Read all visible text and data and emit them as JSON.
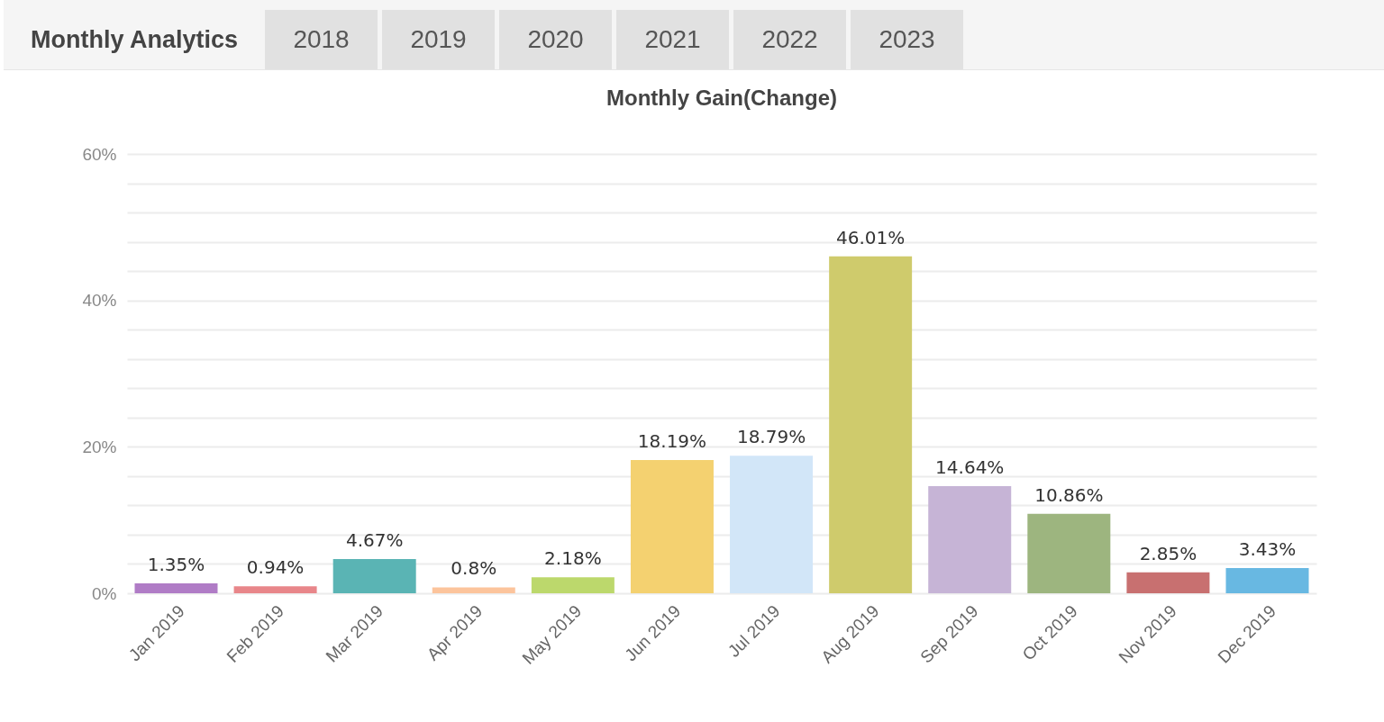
{
  "chart_data": {
    "type": "bar",
    "title": "Monthly Gain(Change)",
    "annotations": [
      "Monthly Analytics",
      "2018",
      "2019",
      "2020",
      "2021",
      "2022",
      "2023"
    ],
    "categories": [
      "Jan 2019",
      "Feb 2019",
      "Mar 2019",
      "Apr 2019",
      "May 2019",
      "Jun 2019",
      "Jul 2019",
      "Aug 2019",
      "Sep 2019",
      "Oct 2019",
      "Nov 2019",
      "Dec 2019"
    ],
    "values": [
      1.35,
      0.94,
      4.67,
      0.8,
      2.18,
      18.19,
      18.79,
      46.01,
      14.64,
      10.86,
      2.85,
      3.43
    ],
    "colors": [
      "#b07cc6",
      "#e8868a",
      "#5ab4b4",
      "#fcc49c",
      "#bcd86c",
      "#f4d170",
      "#d2e6f8",
      "#cfcb6c",
      "#c6b4d6",
      "#9db57f",
      "#c87070",
      "#68b8e2"
    ],
    "value_labels": [
      "1.35%",
      "0.94%",
      "4.67%",
      "0.8%",
      "2.18%",
      "18.19%",
      "18.79%",
      "46.01%",
      "14.64%",
      "10.86%",
      "2.85%",
      "3.43%"
    ],
    "ylim": [
      0,
      60
    ],
    "yticks": [
      {
        "value": 0,
        "label": "0%"
      },
      {
        "value": 4,
        "label": null
      },
      {
        "value": 8,
        "label": null
      },
      {
        "value": 12,
        "label": null
      },
      {
        "value": 16,
        "label": null
      },
      {
        "value": 20,
        "label": "20%"
      },
      {
        "value": 24,
        "label": null
      },
      {
        "value": 28,
        "label": null
      },
      {
        "value": 32,
        "label": null
      },
      {
        "value": 36,
        "label": null
      },
      {
        "value": 40,
        "label": "40%"
      },
      {
        "value": 44,
        "label": null
      },
      {
        "value": 48,
        "label": null
      },
      {
        "value": 52,
        "label": null
      },
      {
        "value": 56,
        "label": null
      },
      {
        "value": 60,
        "label": "60%"
      }
    ],
    "grid": true
  }
}
